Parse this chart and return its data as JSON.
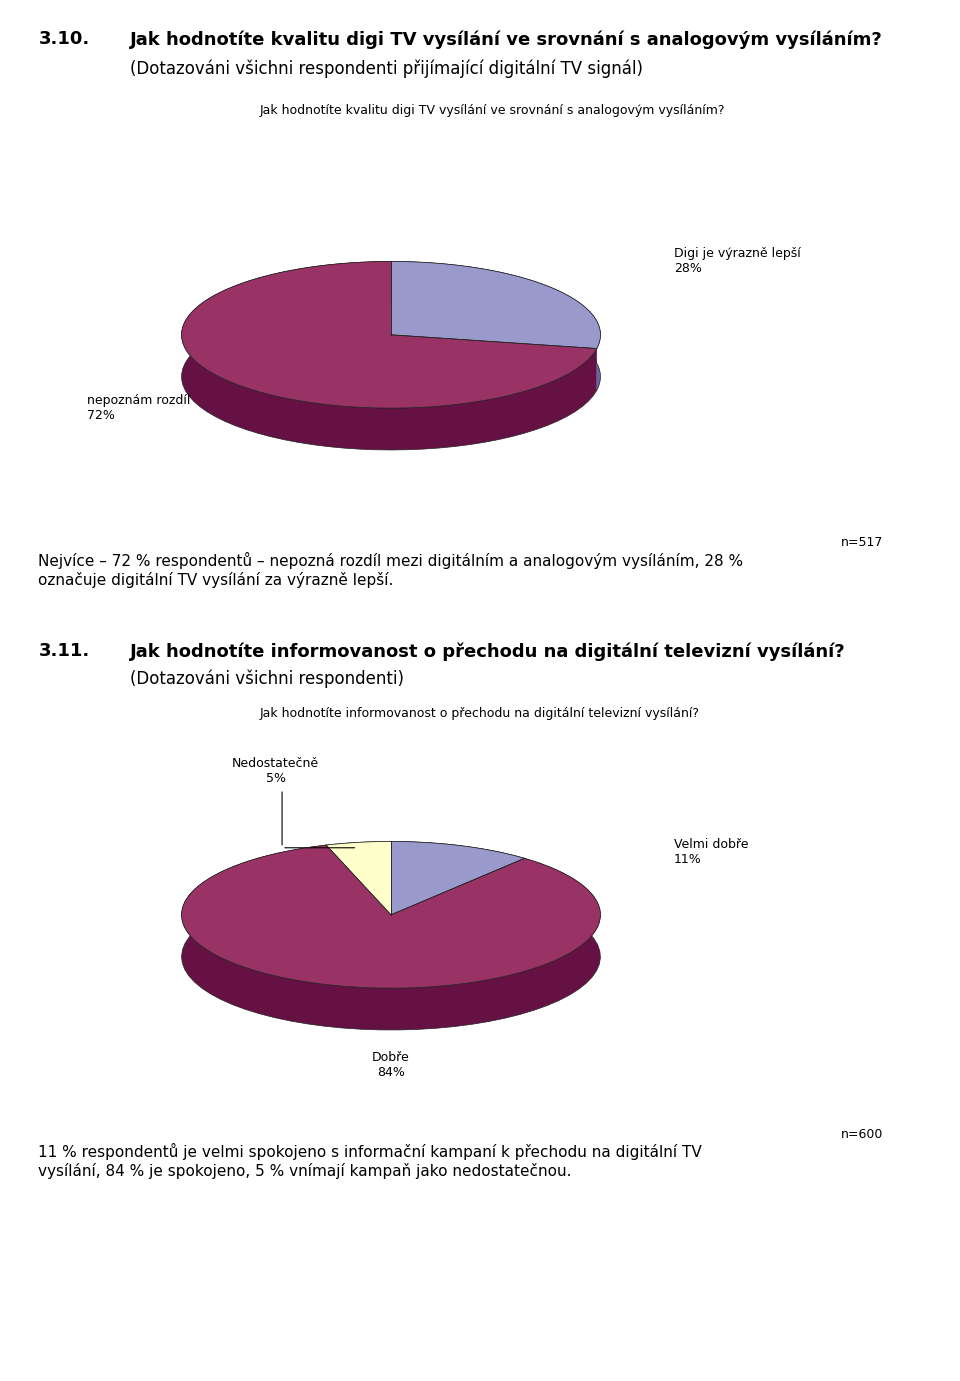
{
  "fig_width": 9.6,
  "fig_height": 13.81,
  "bg_color": "#ffffff",
  "section1_number": "3.10.",
  "section1_title": "Jak hodnotíte kvalitu digi TV vysílání ve srovnání s analogovým vysíláním?",
  "section1_subtitle": "(Dotazováni všichni respondenti přijímající digitální TV signál)",
  "section1_chart_title": "Jak hodnotíte kvalitu digi TV vysílání ve srovnání s analogovým vysíláním?",
  "section1_n": "n=517",
  "section1_summary": "Nejvíce – 72 % respondentů – nepozná rozdíl mezi digitálním a analogovým vysíláním, 28 %\noznačuje digitální TV vysílání za výrazně lepší.",
  "pie1_values": [
    28,
    72
  ],
  "pie1_colors_top": [
    "#9999cc",
    "#993366"
  ],
  "pie1_colors_side": [
    "#6666aa",
    "#661144"
  ],
  "pie1_startangle": 90,
  "section2_number": "3.11.",
  "section2_title": "Jak hodnotíte informovanost o přechodu na digitální televizní vysílání?",
  "section2_subtitle": "(Dotazováni všichni respondenti)",
  "section2_chart_title": "Jak hodnotíte informovanost o přechodu na digitální televizní vysílání?",
  "section2_n": "n=600",
  "section2_summary": "11 % respondentů je velmi spokojeno s informační kampaní k přechodu na digitální TV\nvysílání, 84 % je spokojeno, 5 % vnímají kampaň jako nedostatečnou.",
  "pie2_values": [
    11,
    84,
    5
  ],
  "pie2_colors_top": [
    "#9999cc",
    "#993366",
    "#ffffcc"
  ],
  "pie2_colors_side": [
    "#6666aa",
    "#661144",
    "#cccc99"
  ],
  "pie2_startangle": 90,
  "title_fontsize": 13,
  "subtitle_fontsize": 12,
  "chart_title_fontsize": 9,
  "label_fontsize": 9,
  "summary_fontsize": 11,
  "section_num_fontsize": 13,
  "n_fontsize": 9
}
